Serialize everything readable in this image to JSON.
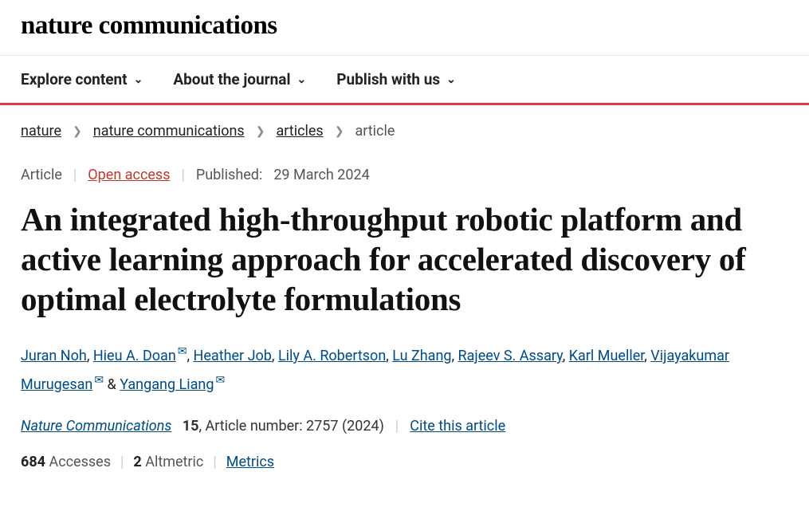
{
  "logo": "nature communications",
  "nav": [
    {
      "label": "Explore content"
    },
    {
      "label": "About the journal"
    },
    {
      "label": "Publish with us"
    }
  ],
  "breadcrumbs": {
    "links": [
      "nature",
      "nature communications",
      "articles"
    ],
    "current": "article"
  },
  "meta": {
    "type": "Article",
    "access": "Open access",
    "published_label": "Published:",
    "published_date": "29 March 2024"
  },
  "title": "An integrated high-throughput robotic platform and active learning approach for accelerated discovery of optimal electrolyte formulations",
  "authors": [
    {
      "name": "Juran Noh",
      "mail": false
    },
    {
      "name": "Hieu A. Doan",
      "mail": true
    },
    {
      "name": "Heather Job",
      "mail": false
    },
    {
      "name": "Lily A. Robertson",
      "mail": false
    },
    {
      "name": "Lu Zhang",
      "mail": false
    },
    {
      "name": "Rajeev S. Assary",
      "mail": false
    },
    {
      "name": "Karl Mueller",
      "mail": false
    },
    {
      "name": "Vijayakumar Murugesan",
      "mail": true
    },
    {
      "name": "Yangang Liang",
      "mail": true
    }
  ],
  "authors_joiner": ", ",
  "authors_last_joiner": " & ",
  "citation": {
    "journal": "Nature Communications",
    "volume": "15",
    "article_label": ", Article number:",
    "article_number": "2757 (2024)",
    "cite": "Cite this article"
  },
  "metrics": {
    "accesses_n": "684",
    "accesses_label": "Accesses",
    "altmetric_n": "2",
    "altmetric_label": "Altmetric",
    "link": "Metrics"
  },
  "colors": {
    "accent_red": "#e63946",
    "link_blue": "#004b83",
    "open_access": "#c0392b"
  }
}
